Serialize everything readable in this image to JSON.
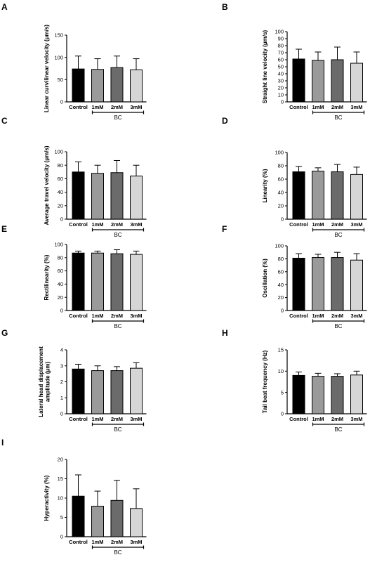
{
  "bar_colors": [
    "#000000",
    "#9a9a9a",
    "#6b6b6b",
    "#d6d6d6"
  ],
  "chart_data": [
    {
      "type": "bar",
      "panel": "A",
      "categories": [
        "Control",
        "1mM",
        "2mM",
        "3mM"
      ],
      "values": [
        74,
        73,
        77,
        72
      ],
      "errors": [
        29,
        24,
        26,
        25
      ],
      "ylabel": "Linear curvilinear velocity (μm/s)",
      "ylim": [
        0,
        150
      ],
      "yticks": [
        0,
        50,
        100,
        150
      ],
      "group_label": "BC",
      "grid": false
    },
    {
      "type": "bar",
      "panel": "B",
      "categories": [
        "Control",
        "1mM",
        "2mM",
        "3mM"
      ],
      "values": [
        61,
        59,
        60,
        55
      ],
      "errors": [
        14,
        12,
        18,
        16
      ],
      "ylabel": "Straight line velocity (μm/s)",
      "ylim": [
        0,
        100
      ],
      "yticks": [
        0,
        10,
        20,
        30,
        40,
        50,
        60,
        70,
        80,
        90,
        100
      ],
      "group_label": "BC",
      "grid": false
    },
    {
      "type": "bar",
      "panel": "C",
      "categories": [
        "Control",
        "1mM",
        "2mM",
        "3mM"
      ],
      "values": [
        70,
        68,
        69,
        64
      ],
      "errors": [
        15,
        12,
        18,
        16
      ],
      "ylabel": "Average travel velocity (μm/s)",
      "ylim": [
        0,
        100
      ],
      "yticks": [
        0,
        20,
        40,
        60,
        80,
        100
      ],
      "group_label": "BC",
      "grid": false
    },
    {
      "type": "bar",
      "panel": "D",
      "categories": [
        "Control",
        "1mM",
        "2mM",
        "3mM"
      ],
      "values": [
        71,
        72,
        71,
        67
      ],
      "errors": [
        8,
        5,
        11,
        11
      ],
      "ylabel": "Linearity (%)",
      "ylim": [
        0,
        100
      ],
      "yticks": [
        0,
        20,
        40,
        60,
        80,
        100
      ],
      "group_label": "BC",
      "grid": false
    },
    {
      "type": "bar",
      "panel": "E",
      "categories": [
        "Control",
        "1mM",
        "2mM",
        "3mM"
      ],
      "values": [
        87,
        87,
        86,
        85
      ],
      "errors": [
        3,
        3,
        6,
        5
      ],
      "ylabel": "Rectilinearity (%)",
      "ylim": [
        0,
        100
      ],
      "yticks": [
        0,
        20,
        40,
        60,
        80,
        100
      ],
      "group_label": "BC",
      "grid": false
    },
    {
      "type": "bar",
      "panel": "F",
      "categories": [
        "Control",
        "1mM",
        "2mM",
        "3mM"
      ],
      "values": [
        81,
        82,
        82,
        78
      ],
      "errors": [
        7,
        5,
        8,
        10
      ],
      "ylabel": "Oscillation (%)",
      "ylim": [
        0,
        100
      ],
      "yticks": [
        0,
        20,
        40,
        60,
        80,
        100
      ],
      "group_label": "BC",
      "grid": false
    },
    {
      "type": "bar",
      "panel": "G",
      "categories": [
        "Control",
        "1mM",
        "2mM",
        "3mM"
      ],
      "values": [
        2.8,
        2.7,
        2.7,
        2.85
      ],
      "errors": [
        0.3,
        0.3,
        0.25,
        0.35
      ],
      "ylabel": "Lateral head displacement amplitude (μm)",
      "ylim": [
        0,
        4
      ],
      "yticks": [
        0,
        1,
        2,
        3,
        4
      ],
      "group_label": "BC",
      "grid": false
    },
    {
      "type": "bar",
      "panel": "H",
      "categories": [
        "Control",
        "1mM",
        "2mM",
        "3mM"
      ],
      "values": [
        9.0,
        8.8,
        8.8,
        9.1
      ],
      "errors": [
        0.8,
        0.7,
        0.6,
        0.9
      ],
      "ylabel": "Tail beat frequency (Hz)",
      "ylim": [
        0,
        15
      ],
      "yticks": [
        0,
        5,
        10,
        15
      ],
      "group_label": "BC",
      "grid": false
    },
    {
      "type": "bar",
      "panel": "I",
      "categories": [
        "Control",
        "1mM",
        "2mM",
        "3mM"
      ],
      "values": [
        10.5,
        7.9,
        9.4,
        7.3
      ],
      "errors": [
        5.5,
        3.9,
        5.2,
        5.1
      ],
      "ylabel": "Hyperactivity (%)",
      "ylim": [
        0,
        20
      ],
      "yticks": [
        0,
        5,
        10,
        15,
        20
      ],
      "group_label": "BC",
      "grid": false
    }
  ]
}
